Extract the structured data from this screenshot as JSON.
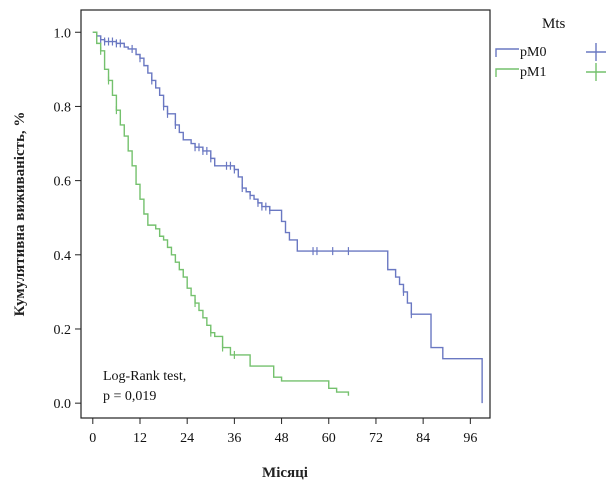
{
  "chart_data": {
    "type": "line",
    "subtype": "kaplan-meier",
    "title": "",
    "xlabel": "Місяці",
    "ylabel": "Кумулятивна виживаність, %",
    "xlim": [
      -3,
      101
    ],
    "ylim": [
      -0.04,
      1.06
    ],
    "xticks": [
      0,
      12,
      24,
      36,
      48,
      60,
      72,
      84,
      96
    ],
    "yticks": [
      0.0,
      0.2,
      0.4,
      0.6,
      0.8,
      1.0
    ],
    "ytick_labels": [
      "0.0",
      "0.2",
      "0.4",
      "0.6",
      "0.8",
      "1.0"
    ],
    "grid": false,
    "legend": {
      "title": "Mts",
      "placement": "outside-right-top",
      "entries": [
        {
          "label": "pM0",
          "color": "#6a78c2"
        },
        {
          "label": "pM1",
          "color": "#74c16d"
        }
      ]
    },
    "annotation": {
      "line1": "Log-Rank test,",
      "line2": "p = 0,019"
    },
    "series": [
      {
        "name": "pM0",
        "color": "#6a78c2",
        "steps": [
          [
            0,
            1.0
          ],
          [
            1,
            0.99
          ],
          [
            2,
            0.98
          ],
          [
            3,
            0.975
          ],
          [
            6,
            0.97
          ],
          [
            8,
            0.96
          ],
          [
            9,
            0.955
          ],
          [
            11,
            0.94
          ],
          [
            12,
            0.93
          ],
          [
            13,
            0.91
          ],
          [
            14,
            0.89
          ],
          [
            15,
            0.87
          ],
          [
            16,
            0.85
          ],
          [
            17,
            0.83
          ],
          [
            18,
            0.8
          ],
          [
            19,
            0.78
          ],
          [
            21,
            0.75
          ],
          [
            22,
            0.73
          ],
          [
            23,
            0.71
          ],
          [
            25,
            0.7
          ],
          [
            26,
            0.69
          ],
          [
            28,
            0.68
          ],
          [
            30,
            0.66
          ],
          [
            31,
            0.64
          ],
          [
            36,
            0.63
          ],
          [
            37,
            0.61
          ],
          [
            38,
            0.58
          ],
          [
            39,
            0.57
          ],
          [
            40,
            0.56
          ],
          [
            41,
            0.55
          ],
          [
            42,
            0.54
          ],
          [
            43,
            0.53
          ],
          [
            45,
            0.52
          ],
          [
            48,
            0.49
          ],
          [
            49,
            0.46
          ],
          [
            50,
            0.44
          ],
          [
            52,
            0.41
          ],
          [
            75,
            0.36
          ],
          [
            77,
            0.34
          ],
          [
            78,
            0.32
          ],
          [
            79,
            0.3
          ],
          [
            80,
            0.27
          ],
          [
            81,
            0.24
          ],
          [
            86,
            0.15
          ],
          [
            89,
            0.12
          ],
          [
            99,
            0.0
          ]
        ],
        "end_x": 99,
        "censored_x": [
          2,
          3,
          4,
          5,
          6,
          7,
          10,
          12,
          15,
          18,
          19,
          21,
          26,
          27,
          28,
          29,
          30,
          34,
          35,
          36,
          38,
          40,
          42,
          43,
          44,
          45,
          56,
          57,
          61,
          65,
          79,
          81
        ]
      },
      {
        "name": "pM1",
        "color": "#74c16d",
        "steps": [
          [
            0,
            1.0
          ],
          [
            1,
            0.97
          ],
          [
            2,
            0.95
          ],
          [
            3,
            0.9
          ],
          [
            4,
            0.87
          ],
          [
            5,
            0.83
          ],
          [
            6,
            0.79
          ],
          [
            7,
            0.75
          ],
          [
            8,
            0.72
          ],
          [
            9,
            0.68
          ],
          [
            10,
            0.64
          ],
          [
            11,
            0.59
          ],
          [
            12,
            0.55
          ],
          [
            13,
            0.51
          ],
          [
            14,
            0.48
          ],
          [
            16,
            0.47
          ],
          [
            17,
            0.45
          ],
          [
            18,
            0.44
          ],
          [
            19,
            0.42
          ],
          [
            20,
            0.4
          ],
          [
            21,
            0.38
          ],
          [
            22,
            0.36
          ],
          [
            23,
            0.34
          ],
          [
            24,
            0.31
          ],
          [
            25,
            0.29
          ],
          [
            26,
            0.27
          ],
          [
            27,
            0.25
          ],
          [
            28,
            0.23
          ],
          [
            29,
            0.21
          ],
          [
            30,
            0.19
          ],
          [
            31,
            0.18
          ],
          [
            33,
            0.15
          ],
          [
            35,
            0.13
          ],
          [
            40,
            0.1
          ],
          [
            46,
            0.07
          ],
          [
            48,
            0.06
          ],
          [
            60,
            0.04
          ],
          [
            62,
            0.03
          ],
          [
            65,
            0.02
          ]
        ],
        "end_x": 65,
        "censored_x": [
          2,
          4,
          6,
          26,
          30,
          33,
          36
        ]
      }
    ]
  }
}
